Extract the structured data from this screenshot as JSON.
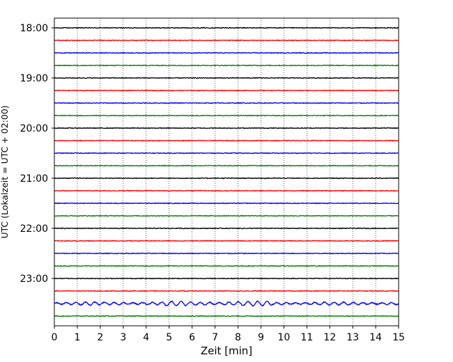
{
  "chart_data": {
    "type": "line",
    "title": "",
    "xlabel": "Zeit  [min]",
    "ylabel": "UTC (Lokalzeit = UTC + 02:00)",
    "xlim": [
      0,
      15
    ],
    "x_ticks": [
      "0",
      "1",
      "2",
      "3",
      "4",
      "5",
      "6",
      "7",
      "8",
      "9",
      "10",
      "11",
      "12",
      "13",
      "14",
      "15"
    ],
    "y_ticks": [
      {
        "label": "18:00",
        "row": 0
      },
      {
        "label": "19:00",
        "row": 4
      },
      {
        "label": "20:00",
        "row": 8
      },
      {
        "label": "21:00",
        "row": 12
      },
      {
        "label": "22:00",
        "row": 16
      },
      {
        "label": "23:00",
        "row": 20
      }
    ],
    "grid": "vertical dotted at every minute",
    "trace_interval_min": 15,
    "colors": [
      "#000000",
      "#ff0000",
      "#0000ff",
      "#008000"
    ],
    "traces": [
      {
        "start": "18:00",
        "color": "#000000",
        "amplitude": 1.0
      },
      {
        "start": "18:15",
        "color": "#ff0000",
        "amplitude": 1.0
      },
      {
        "start": "18:30",
        "color": "#0000ff",
        "amplitude": 1.0
      },
      {
        "start": "18:45",
        "color": "#008000",
        "amplitude": 1.0
      },
      {
        "start": "19:00",
        "color": "#000000",
        "amplitude": 1.0
      },
      {
        "start": "19:15",
        "color": "#ff0000",
        "amplitude": 1.0
      },
      {
        "start": "19:30",
        "color": "#0000ff",
        "amplitude": 1.0
      },
      {
        "start": "19:45",
        "color": "#008000",
        "amplitude": 1.0
      },
      {
        "start": "20:00",
        "color": "#000000",
        "amplitude": 1.0
      },
      {
        "start": "20:15",
        "color": "#ff0000",
        "amplitude": 1.0
      },
      {
        "start": "20:30",
        "color": "#0000ff",
        "amplitude": 1.0
      },
      {
        "start": "20:45",
        "color": "#008000",
        "amplitude": 1.0
      },
      {
        "start": "21:00",
        "color": "#000000",
        "amplitude": 1.0
      },
      {
        "start": "21:15",
        "color": "#ff0000",
        "amplitude": 1.0
      },
      {
        "start": "21:30",
        "color": "#0000ff",
        "amplitude": 1.0
      },
      {
        "start": "21:45",
        "color": "#008000",
        "amplitude": 1.0
      },
      {
        "start": "22:00",
        "color": "#000000",
        "amplitude": 1.0
      },
      {
        "start": "22:15",
        "color": "#ff0000",
        "amplitude": 1.0
      },
      {
        "start": "22:30",
        "color": "#0000ff",
        "amplitude": 1.0
      },
      {
        "start": "22:45",
        "color": "#008000",
        "amplitude": 1.0
      },
      {
        "start": "23:00",
        "color": "#000000",
        "amplitude": 1.0
      },
      {
        "start": "23:15",
        "color": "#ff0000",
        "amplitude": 1.0
      },
      {
        "start": "23:30",
        "color": "#0000ff",
        "amplitude": 4.0
      },
      {
        "start": "23:45",
        "color": "#008000",
        "amplitude": 1.0
      }
    ]
  }
}
